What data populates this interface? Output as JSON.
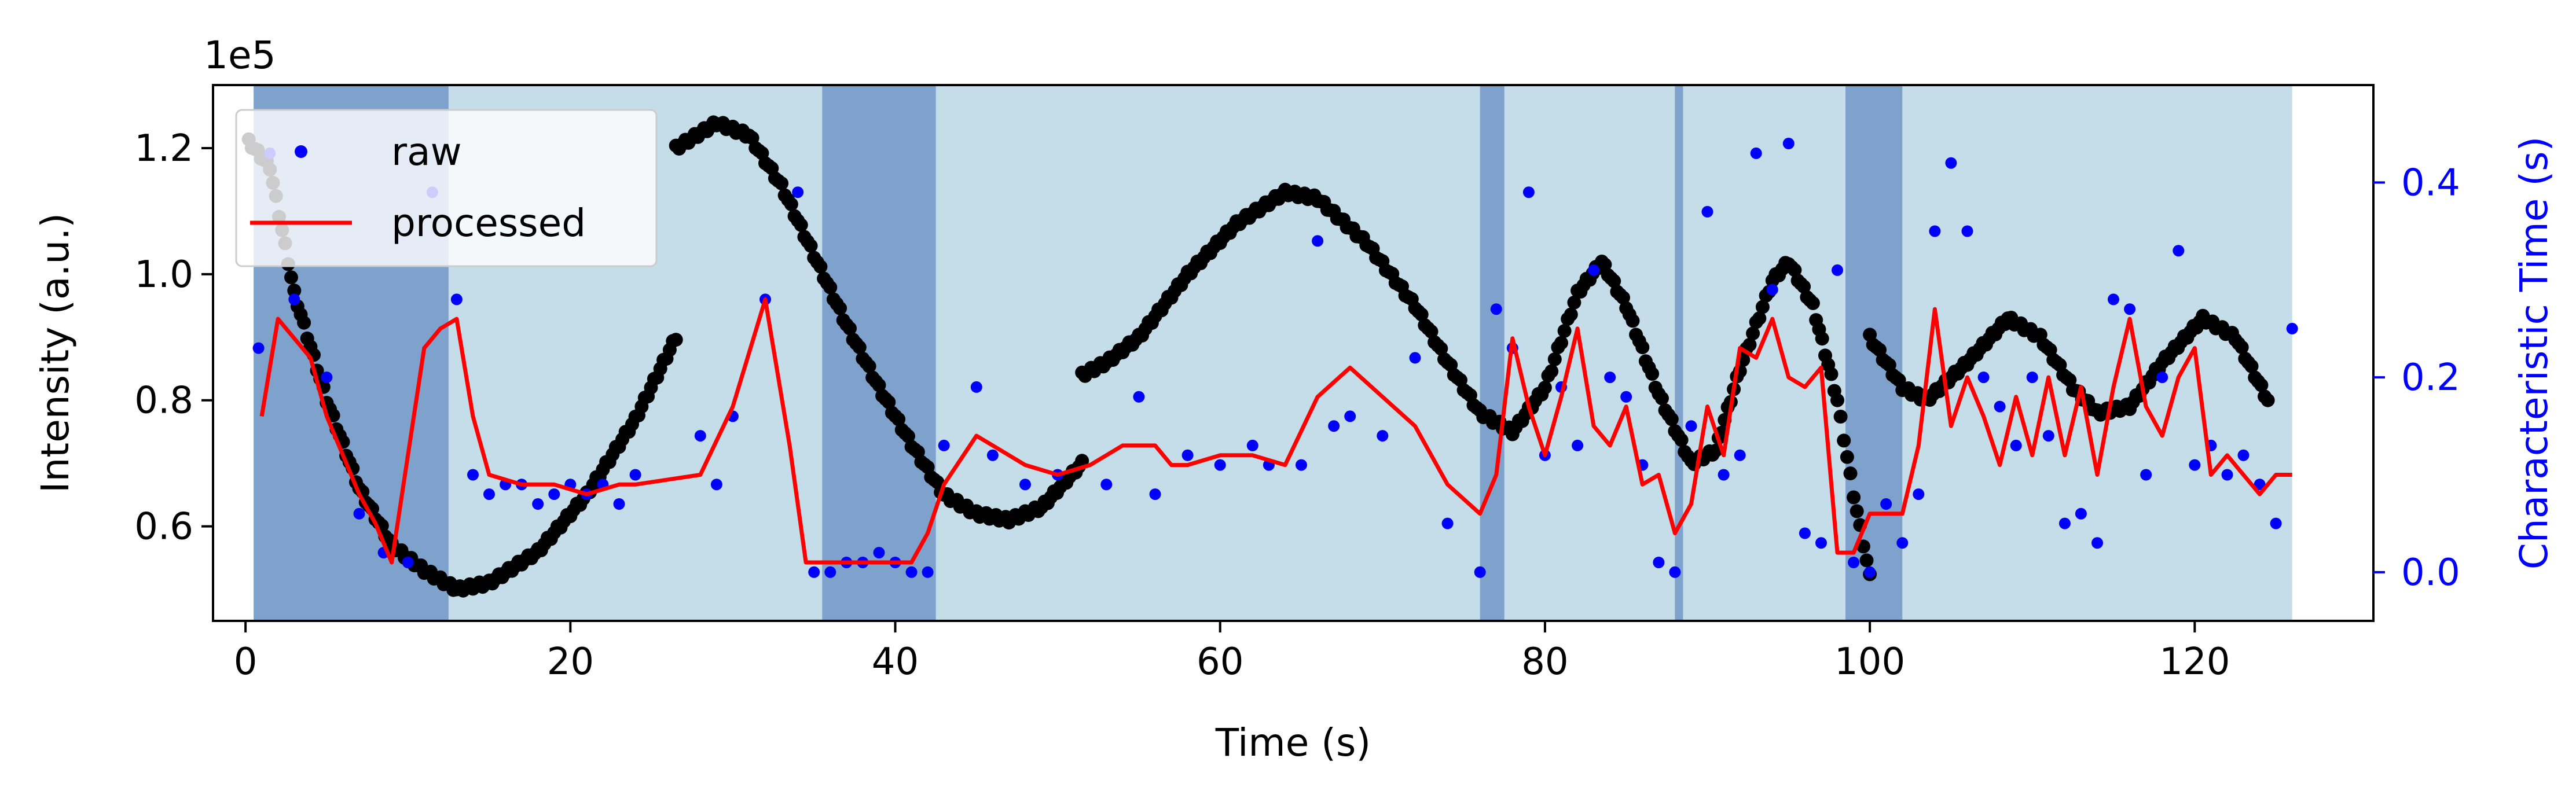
{
  "chart_data": {
    "type": "scatter",
    "xlabel": "Time (s)",
    "ylabel": "Intensity (a.u.)",
    "y2label": "Characteristic Time (s)",
    "y_offset_text": "1e5",
    "xlim": [
      -2,
      131
    ],
    "ylim": [
      0.45,
      1.3
    ],
    "y2lim": [
      -0.05,
      0.5
    ],
    "xticks": [
      0,
      20,
      40,
      60,
      80,
      100,
      120
    ],
    "xtick_labels": [
      "0",
      "20",
      "40",
      "60",
      "80",
      "100",
      "120"
    ],
    "yticks": [
      0.6,
      0.8,
      1.0,
      1.2
    ],
    "ytick_labels": [
      "0.6",
      "0.8",
      "1.0",
      "1.2"
    ],
    "y2ticks": [
      0.0,
      0.2,
      0.4
    ],
    "y2tick_labels": [
      "0.0",
      "0.2",
      "0.4"
    ],
    "grid": false,
    "legend_position": "top-left",
    "colors": {
      "band_light": "#c5dde8",
      "band_dark": "#7fa2cd",
      "intensity": "#000000",
      "raw": "#0000ff",
      "processed": "#ff0000",
      "right_axis": "#0000ff"
    },
    "background_band": [
      0.5,
      126
    ],
    "highlight_bands": [
      [
        0.5,
        12.5
      ],
      [
        35.5,
        42.5
      ],
      [
        76,
        77.5
      ],
      [
        88,
        88.5
      ],
      [
        98.5,
        102
      ]
    ],
    "intensity_knots": [
      [
        [
          0.2,
          1.21
        ],
        [
          1.5,
          1.17
        ],
        [
          3,
          0.97
        ],
        [
          5,
          0.8
        ],
        [
          7,
          0.66
        ],
        [
          9,
          0.57
        ],
        [
          11,
          0.53
        ],
        [
          13,
          0.5
        ],
        [
          15,
          0.51
        ],
        [
          18,
          0.56
        ],
        [
          21,
          0.65
        ],
        [
          24,
          0.77
        ],
        [
          26.5,
          0.9
        ]
      ],
      [
        [
          26.5,
          1.2
        ],
        [
          29,
          1.24
        ],
        [
          31,
          1.22
        ],
        [
          33,
          1.14
        ],
        [
          35,
          1.03
        ],
        [
          37,
          0.92
        ],
        [
          39,
          0.82
        ],
        [
          41,
          0.73
        ],
        [
          43,
          0.65
        ],
        [
          45,
          0.62
        ],
        [
          47,
          0.61
        ],
        [
          49,
          0.63
        ],
        [
          51.5,
          0.7
        ]
      ],
      [
        [
          51.5,
          0.84
        ],
        [
          53,
          0.86
        ],
        [
          55,
          0.9
        ],
        [
          58,
          1.0
        ],
        [
          61,
          1.08
        ],
        [
          64,
          1.13
        ],
        [
          66,
          1.12
        ],
        [
          69,
          1.05
        ],
        [
          72,
          0.95
        ],
        [
          74,
          0.86
        ],
        [
          76,
          0.78
        ],
        [
          78,
          0.75
        ],
        [
          80,
          0.82
        ],
        [
          82,
          0.97
        ],
        [
          83.5,
          1.02
        ],
        [
          85,
          0.95
        ],
        [
          87,
          0.81
        ],
        [
          89,
          0.7
        ],
        [
          90.5,
          0.72
        ],
        [
          92,
          0.85
        ],
        [
          94,
          0.99
        ],
        [
          95,
          1.02
        ],
        [
          96.5,
          0.95
        ],
        [
          98,
          0.8
        ],
        [
          99,
          0.65
        ],
        [
          100,
          0.52
        ]
      ],
      [
        [
          100,
          0.9
        ],
        [
          102,
          0.82
        ],
        [
          103.5,
          0.8
        ],
        [
          106,
          0.86
        ],
        [
          108.5,
          0.93
        ],
        [
          110.5,
          0.9
        ],
        [
          112.5,
          0.82
        ],
        [
          114,
          0.78
        ],
        [
          116,
          0.79
        ],
        [
          118,
          0.86
        ],
        [
          120.5,
          0.93
        ],
        [
          122.5,
          0.9
        ],
        [
          124.5,
          0.8
        ]
      ]
    ],
    "series": [
      {
        "name": "raw",
        "axis": "right",
        "marker": "dot",
        "x": [
          0.8,
          1.5,
          3,
          5,
          7,
          8.5,
          10,
          11.5,
          13,
          14,
          15,
          16,
          17,
          18,
          19,
          20,
          21,
          22,
          23,
          24,
          28,
          29,
          30,
          32,
          34,
          35,
          36,
          37,
          38,
          39,
          40,
          41,
          42,
          43,
          45,
          46,
          48,
          50,
          53,
          55,
          56,
          58,
          60,
          62,
          63,
          65,
          66,
          67,
          68,
          70,
          72,
          74,
          76,
          77,
          78,
          79,
          80,
          81,
          82,
          83,
          84,
          85,
          86,
          87,
          88,
          89,
          90,
          91,
          92,
          93,
          94,
          95,
          96,
          97,
          98,
          99,
          100,
          101,
          102,
          103,
          104,
          105,
          106,
          107,
          108,
          109,
          110,
          111,
          112,
          113,
          114,
          115,
          116,
          117,
          118,
          119,
          120,
          121,
          122,
          123,
          124,
          125,
          126
        ],
        "y": [
          0.23,
          0.43,
          0.28,
          0.2,
          0.06,
          0.02,
          0.01,
          0.39,
          0.28,
          0.1,
          0.08,
          0.09,
          0.09,
          0.07,
          0.08,
          0.09,
          0.08,
          0.09,
          0.07,
          0.1,
          0.14,
          0.09,
          0.16,
          0.28,
          0.39,
          0.0,
          0.0,
          0.01,
          0.01,
          0.02,
          0.01,
          0.0,
          0.0,
          0.13,
          0.19,
          0.12,
          0.09,
          0.1,
          0.09,
          0.18,
          0.08,
          0.12,
          0.11,
          0.13,
          0.11,
          0.11,
          0.34,
          0.15,
          0.16,
          0.14,
          0.22,
          0.05,
          0.0,
          0.27,
          0.23,
          0.39,
          0.12,
          0.19,
          0.13,
          0.31,
          0.2,
          0.18,
          0.11,
          0.01,
          0.0,
          0.15,
          0.37,
          0.1,
          0.12,
          0.43,
          0.29,
          0.44,
          0.04,
          0.03,
          0.31,
          0.01,
          0.0,
          0.07,
          0.03,
          0.08,
          0.35,
          0.42,
          0.35,
          0.2,
          0.17,
          0.13,
          0.2,
          0.14,
          0.05,
          0.06,
          0.03,
          0.28,
          0.27,
          0.1,
          0.2,
          0.33,
          0.11,
          0.13,
          0.1,
          0.12,
          0.09,
          0.05,
          0.25
        ]
      },
      {
        "name": "processed",
        "axis": "right",
        "marker": "line",
        "x": [
          1,
          2,
          3,
          4,
          5,
          6,
          7,
          8,
          9,
          10,
          11,
          12,
          13,
          14,
          15,
          17,
          19,
          21,
          23,
          24,
          28,
          30,
          32,
          33.5,
          34.5,
          36,
          38,
          40,
          41,
          42,
          43,
          45,
          46,
          48,
          50,
          52,
          54,
          56,
          57,
          58,
          60,
          62,
          64,
          66,
          68,
          70,
          72,
          74,
          76,
          77,
          78,
          79,
          80,
          81,
          82,
          83,
          84,
          85,
          86,
          87,
          88,
          89,
          90,
          91,
          92,
          93,
          94,
          95,
          96,
          97,
          98,
          99,
          100,
          101,
          102,
          103,
          104,
          105,
          106,
          107,
          108,
          109,
          110,
          111,
          112,
          113,
          114,
          115,
          116,
          117,
          118,
          119,
          120,
          121,
          122,
          123,
          124,
          125,
          126
        ],
        "y": [
          0.16,
          0.26,
          0.24,
          0.22,
          0.16,
          0.12,
          0.08,
          0.05,
          0.01,
          0.12,
          0.23,
          0.25,
          0.26,
          0.16,
          0.1,
          0.09,
          0.09,
          0.08,
          0.09,
          0.09,
          0.1,
          0.17,
          0.28,
          0.13,
          0.01,
          0.01,
          0.01,
          0.01,
          0.01,
          0.04,
          0.09,
          0.14,
          0.13,
          0.11,
          0.1,
          0.11,
          0.13,
          0.13,
          0.11,
          0.11,
          0.12,
          0.12,
          0.11,
          0.18,
          0.21,
          0.18,
          0.15,
          0.09,
          0.06,
          0.1,
          0.24,
          0.17,
          0.12,
          0.18,
          0.25,
          0.15,
          0.13,
          0.17,
          0.09,
          0.1,
          0.04,
          0.07,
          0.17,
          0.12,
          0.23,
          0.22,
          0.26,
          0.2,
          0.19,
          0.21,
          0.02,
          0.02,
          0.06,
          0.06,
          0.06,
          0.13,
          0.27,
          0.15,
          0.2,
          0.16,
          0.11,
          0.18,
          0.12,
          0.2,
          0.12,
          0.19,
          0.1,
          0.19,
          0.26,
          0.17,
          0.14,
          0.2,
          0.23,
          0.1,
          0.12,
          0.1,
          0.08,
          0.1,
          0.1
        ]
      }
    ],
    "legend": [
      {
        "label": "raw",
        "marker": "dot",
        "color": "#0000ff"
      },
      {
        "label": "processed",
        "marker": "line",
        "color": "#ff0000"
      }
    ]
  }
}
